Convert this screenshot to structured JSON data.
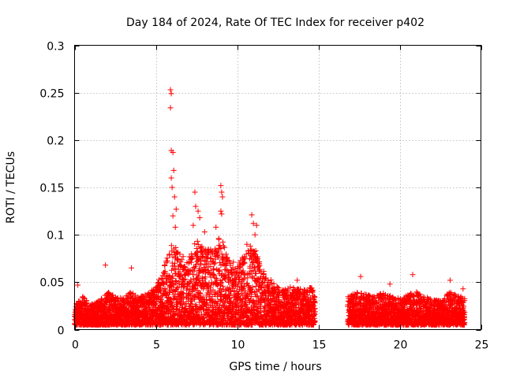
{
  "chart_data": {
    "type": "scatter",
    "title": "Day 184 of 2024, Rate Of TEC Index for receiver p402",
    "xlabel": "GPS time / hours",
    "ylabel": "ROTI / TECUs",
    "xlim": [
      0,
      25
    ],
    "ylim": [
      0,
      0.3
    ],
    "xticks": [
      0,
      5,
      10,
      15,
      20,
      25
    ],
    "xtick_labels": [
      "0",
      "5",
      "10",
      "15",
      "20",
      "25"
    ],
    "yticks": [
      0,
      0.05,
      0.1,
      0.15,
      0.2,
      0.25,
      0.3
    ],
    "ytick_labels": [
      "0",
      "0.05",
      "0.1",
      "0.15",
      "0.2",
      "0.25",
      "0.3"
    ],
    "grid": true,
    "marker": "+",
    "color": "#ff0000",
    "data_gap_hours": [
      14.8,
      16.8
    ],
    "peaks": [
      {
        "x": 0.2,
        "y": 0.047
      },
      {
        "x": 1.9,
        "y": 0.068
      },
      {
        "x": 3.5,
        "y": 0.065
      },
      {
        "x": 5.9,
        "y": 0.253
      },
      {
        "x": 5.95,
        "y": 0.249
      },
      {
        "x": 5.9,
        "y": 0.234
      },
      {
        "x": 5.95,
        "y": 0.189
      },
      {
        "x": 6.05,
        "y": 0.187
      },
      {
        "x": 6.1,
        "y": 0.168
      },
      {
        "x": 5.95,
        "y": 0.16
      },
      {
        "x": 6.0,
        "y": 0.15
      },
      {
        "x": 6.15,
        "y": 0.14
      },
      {
        "x": 6.25,
        "y": 0.127
      },
      {
        "x": 6.05,
        "y": 0.12
      },
      {
        "x": 6.2,
        "y": 0.108
      },
      {
        "x": 7.4,
        "y": 0.145
      },
      {
        "x": 7.45,
        "y": 0.13
      },
      {
        "x": 7.6,
        "y": 0.125
      },
      {
        "x": 7.7,
        "y": 0.118
      },
      {
        "x": 7.3,
        "y": 0.11
      },
      {
        "x": 8.0,
        "y": 0.103
      },
      {
        "x": 9.0,
        "y": 0.152
      },
      {
        "x": 9.05,
        "y": 0.145
      },
      {
        "x": 9.1,
        "y": 0.14
      },
      {
        "x": 9.0,
        "y": 0.125
      },
      {
        "x": 9.05,
        "y": 0.122
      },
      {
        "x": 8.7,
        "y": 0.108
      },
      {
        "x": 10.9,
        "y": 0.121
      },
      {
        "x": 11.0,
        "y": 0.112
      },
      {
        "x": 11.2,
        "y": 0.11
      },
      {
        "x": 11.1,
        "y": 0.1
      },
      {
        "x": 10.6,
        "y": 0.09
      },
      {
        "x": 13.7,
        "y": 0.052
      },
      {
        "x": 17.6,
        "y": 0.056
      },
      {
        "x": 19.4,
        "y": 0.048
      },
      {
        "x": 20.8,
        "y": 0.058
      },
      {
        "x": 23.1,
        "y": 0.052
      },
      {
        "x": 23.9,
        "y": 0.043
      }
    ],
    "envelope": [
      {
        "x": 0.0,
        "y": 0.02
      },
      {
        "x": 0.5,
        "y": 0.03
      },
      {
        "x": 1.0,
        "y": 0.022
      },
      {
        "x": 1.5,
        "y": 0.025
      },
      {
        "x": 2.0,
        "y": 0.035
      },
      {
        "x": 2.5,
        "y": 0.03
      },
      {
        "x": 3.0,
        "y": 0.028
      },
      {
        "x": 3.5,
        "y": 0.035
      },
      {
        "x": 4.0,
        "y": 0.03
      },
      {
        "x": 4.5,
        "y": 0.033
      },
      {
        "x": 5.0,
        "y": 0.04
      },
      {
        "x": 5.5,
        "y": 0.06
      },
      {
        "x": 6.0,
        "y": 0.09
      },
      {
        "x": 6.5,
        "y": 0.075
      },
      {
        "x": 7.0,
        "y": 0.07
      },
      {
        "x": 7.5,
        "y": 0.09
      },
      {
        "x": 8.0,
        "y": 0.08
      },
      {
        "x": 8.5,
        "y": 0.08
      },
      {
        "x": 9.0,
        "y": 0.095
      },
      {
        "x": 9.5,
        "y": 0.07
      },
      {
        "x": 10.0,
        "y": 0.065
      },
      {
        "x": 10.5,
        "y": 0.075
      },
      {
        "x": 11.0,
        "y": 0.09
      },
      {
        "x": 11.5,
        "y": 0.06
      },
      {
        "x": 12.0,
        "y": 0.05
      },
      {
        "x": 12.5,
        "y": 0.04
      },
      {
        "x": 13.0,
        "y": 0.04
      },
      {
        "x": 13.5,
        "y": 0.04
      },
      {
        "x": 14.0,
        "y": 0.038
      },
      {
        "x": 14.8,
        "y": 0.04
      },
      {
        "x": 16.8,
        "y": 0.03
      },
      {
        "x": 17.5,
        "y": 0.035
      },
      {
        "x": 18.0,
        "y": 0.032
      },
      {
        "x": 18.5,
        "y": 0.03
      },
      {
        "x": 19.0,
        "y": 0.035
      },
      {
        "x": 19.5,
        "y": 0.03
      },
      {
        "x": 20.0,
        "y": 0.028
      },
      {
        "x": 20.5,
        "y": 0.032
      },
      {
        "x": 21.0,
        "y": 0.035
      },
      {
        "x": 21.5,
        "y": 0.03
      },
      {
        "x": 22.0,
        "y": 0.028
      },
      {
        "x": 22.5,
        "y": 0.025
      },
      {
        "x": 23.0,
        "y": 0.035
      },
      {
        "x": 23.5,
        "y": 0.032
      },
      {
        "x": 24.0,
        "y": 0.03
      }
    ]
  }
}
